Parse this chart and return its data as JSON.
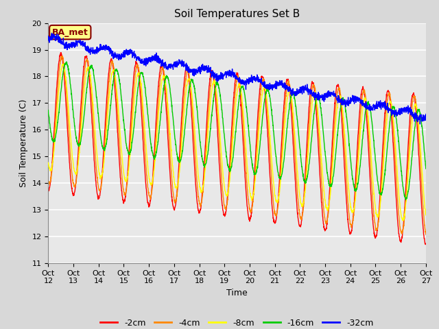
{
  "title": "Soil Temperatures Set B",
  "xlabel": "Time",
  "ylabel": "Soil Temperature (C)",
  "ylim": [
    11.0,
    20.0
  ],
  "xlim": [
    0,
    360
  ],
  "yticks": [
    11.0,
    12.0,
    13.0,
    14.0,
    15.0,
    16.0,
    17.0,
    18.0,
    19.0,
    20.0
  ],
  "xtick_positions": [
    0,
    24,
    48,
    72,
    96,
    120,
    144,
    168,
    192,
    216,
    240,
    264,
    288,
    312,
    336,
    360
  ],
  "xtick_labels": [
    "Oct 12",
    "Oct 13",
    "Oct 14",
    "Oct 15",
    "Oct 16",
    "Oct 17",
    "Oct 18",
    "Oct 19",
    "Oct 20",
    "Oct 21",
    "Oct 22",
    "Oct 23",
    "Oct 24",
    "Oct 25",
    "Oct 26",
    "Oct 27"
  ],
  "fig_bg_color": "#d8d8d8",
  "plot_bg_color": "#e8e8e8",
  "grid_color": "#ffffff",
  "line_colors": {
    "-2cm": "#ff0000",
    "-4cm": "#ff8800",
    "-8cm": "#ffff00",
    "-16cm": "#00cc00",
    "-32cm": "#0000ff"
  },
  "line_width": 1.0,
  "label_box_text": "BA_met",
  "label_box_bg": "#ffff88",
  "label_box_edge": "#880000",
  "label_box_text_color": "#880000",
  "title_fontsize": 11,
  "axis_label_fontsize": 9,
  "tick_fontsize": 8,
  "legend_fontsize": 9
}
